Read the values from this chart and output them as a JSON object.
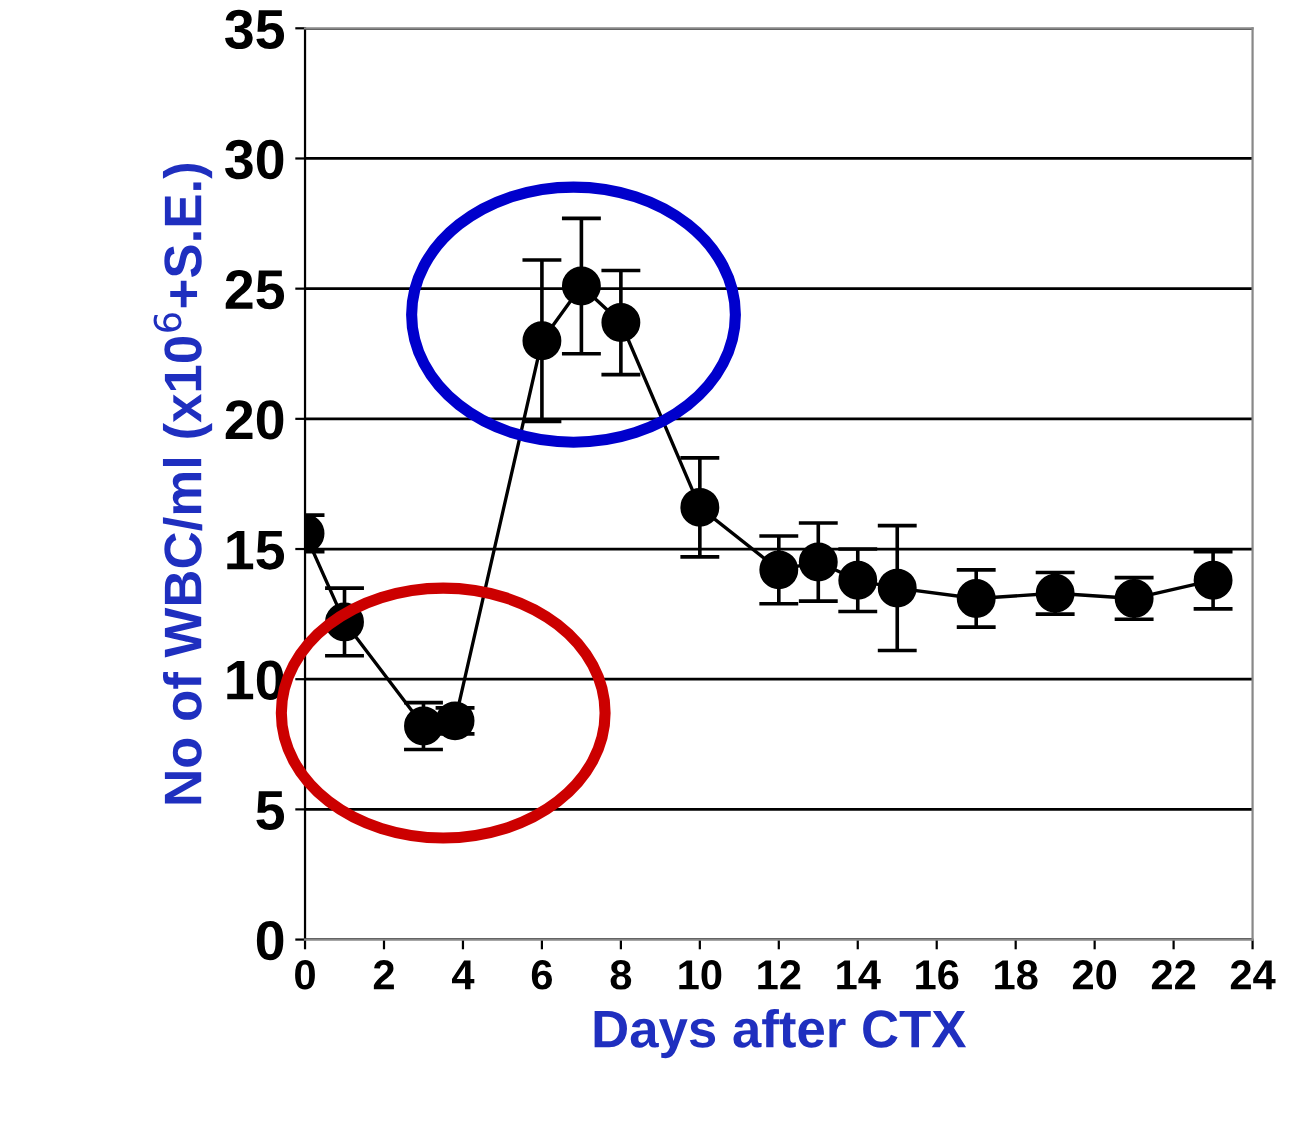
{
  "chart_data": {
    "type": "line",
    "xlabel": "Days after CTX",
    "ylabel": "No of WBC/ml (x10$^{6}$+S.E.)",
    "x": [
      0,
      1,
      3,
      3.8,
      6,
      7,
      8,
      10,
      12,
      13,
      14,
      15,
      17,
      19,
      21,
      23
    ],
    "series": [
      {
        "color": "#000000",
        "values": [
          15.6,
          12.2,
          8.2,
          8.4,
          23.0,
          25.1,
          23.7,
          16.6,
          14.2,
          14.5,
          13.8,
          13.5,
          13.1,
          13.3,
          13.1,
          13.8
        ],
        "errors": [
          0.7,
          1.3,
          0.9,
          0.5,
          3.1,
          2.6,
          2.0,
          1.9,
          1.3,
          1.5,
          1.2,
          2.4,
          1.1,
          0.8,
          0.8,
          1.1
        ]
      }
    ],
    "xlim": [
      0,
      24
    ],
    "xticks": [
      0,
      2,
      4,
      6,
      8,
      10,
      12,
      14,
      16,
      18,
      20,
      22,
      24
    ],
    "ylim": [
      0,
      35
    ],
    "yticks": [
      0,
      5,
      10,
      15,
      20,
      25,
      30,
      35
    ],
    "grid": "y",
    "marker": "circle",
    "line_style": "solid",
    "legend": false
  }
}
